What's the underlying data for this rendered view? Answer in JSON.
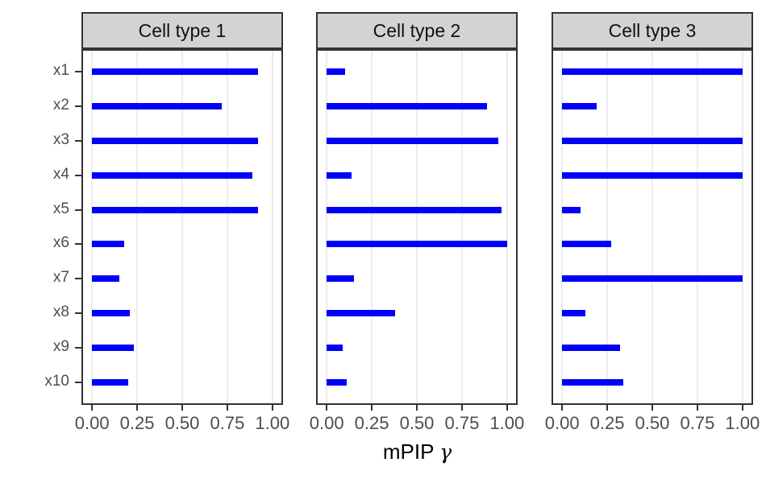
{
  "chart_data": {
    "type": "bar",
    "orientation": "horizontal",
    "xlabel": "mPIP γ",
    "xlabel_main": "mPIP",
    "xlabel_symbol": "γ",
    "categories": [
      "x1",
      "x2",
      "x3",
      "x4",
      "x5",
      "x6",
      "x7",
      "x8",
      "x9",
      "x10"
    ],
    "x_tick_labels": [
      "0.00",
      "0.25",
      "0.50",
      "0.75",
      "1.00"
    ],
    "x_tick_values": [
      0,
      0.25,
      0.5,
      0.75,
      1
    ],
    "xlim": [
      -0.05,
      1.05
    ],
    "grid": "major-vertical-only",
    "legend_position": "none",
    "facets": [
      {
        "label": "Cell type 1",
        "values": [
          0.92,
          0.72,
          0.92,
          0.89,
          0.92,
          0.18,
          0.15,
          0.21,
          0.23,
          0.2
        ]
      },
      {
        "label": "Cell type 2",
        "values": [
          0.1,
          0.89,
          0.95,
          0.14,
          0.97,
          1.0,
          0.15,
          0.38,
          0.09,
          0.11
        ]
      },
      {
        "label": "Cell type 3",
        "values": [
          1.0,
          0.19,
          1.0,
          1.0,
          0.1,
          0.27,
          1.0,
          0.13,
          0.32,
          0.34
        ]
      }
    ]
  },
  "style": {
    "bar_color": "#0000FA",
    "strip_fill": "#D3D3D3",
    "strip_border": "#333333",
    "strip_text_color": "#111111",
    "panel_border": "#333333",
    "grid_color": "#ECECEC",
    "tick_color": "#333333",
    "tick_label_color": "#4D4D4D",
    "axis_title_color": "#000000",
    "background": "#FFFFFF"
  }
}
